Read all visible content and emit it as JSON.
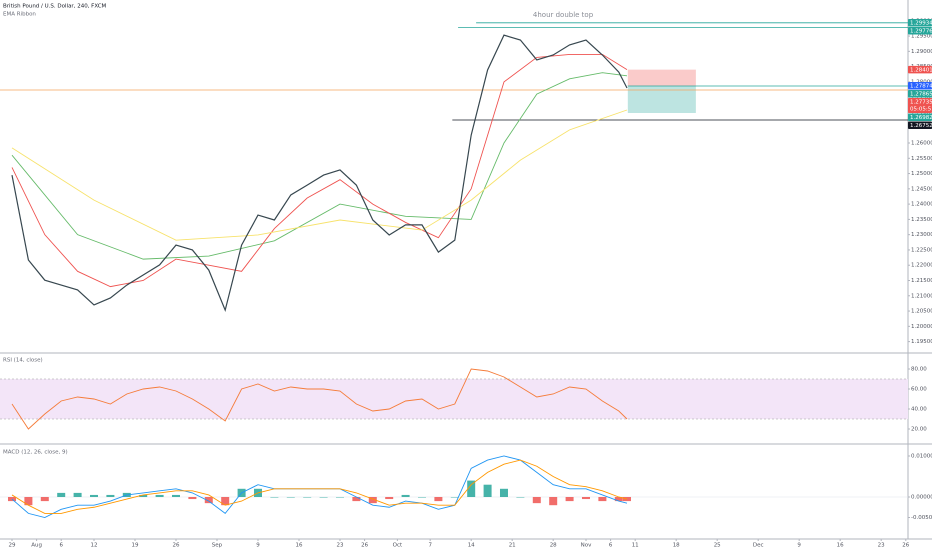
{
  "chart_data": [
    {
      "type": "line",
      "title": "British Pound / U.S. Dollar, 240, FXCM",
      "subtitle": "EMA Ribbon",
      "annotation": {
        "text": "4hour double top",
        "x": 67.2,
        "y": 1.3019
      },
      "xlim": [
        -1.463,
        109.27
      ],
      "ylim": [
        1.1916,
        1.3068
      ],
      "xticks": [
        {
          "value": 0,
          "label": "29"
        },
        {
          "value": 3,
          "label": "Aug"
        },
        {
          "value": 6,
          "label": "6"
        },
        {
          "value": 10,
          "label": "12"
        },
        {
          "value": 15,
          "label": "19"
        },
        {
          "value": 20,
          "label": "26"
        },
        {
          "value": 25,
          "label": "Sep"
        },
        {
          "value": 30,
          "label": "9"
        },
        {
          "value": 35,
          "label": "16"
        },
        {
          "value": 40,
          "label": "23"
        },
        {
          "value": 43,
          "label": "26"
        },
        {
          "value": 47,
          "label": "Oct"
        },
        {
          "value": 51,
          "label": "7"
        },
        {
          "value": 56,
          "label": "14"
        },
        {
          "value": 61,
          "label": "21"
        },
        {
          "value": 66,
          "label": "28"
        },
        {
          "value": 70,
          "label": "Nov"
        },
        {
          "value": 73,
          "label": "6"
        },
        {
          "value": 76,
          "label": "11"
        },
        {
          "value": 81,
          "label": "18"
        },
        {
          "value": 86,
          "label": "25"
        },
        {
          "value": 91,
          "label": "Dec"
        },
        {
          "value": 96,
          "label": "9"
        },
        {
          "value": 101,
          "label": "16"
        },
        {
          "value": 106,
          "label": "23"
        },
        {
          "value": 109,
          "label": "26"
        }
      ],
      "yticks": [
        {
          "value": 1.195,
          "label": "1.19500"
        },
        {
          "value": 1.2,
          "label": "1.20000"
        },
        {
          "value": 1.205,
          "label": "1.20500"
        },
        {
          "value": 1.21,
          "label": "1.21000"
        },
        {
          "value": 1.215,
          "label": "1.21500"
        },
        {
          "value": 1.22,
          "label": "1.22000"
        },
        {
          "value": 1.225,
          "label": "1.22500"
        },
        {
          "value": 1.23,
          "label": "1.23000"
        },
        {
          "value": 1.235,
          "label": "1.23500"
        },
        {
          "value": 1.24,
          "label": "1.24000"
        },
        {
          "value": 1.245,
          "label": "1.24500"
        },
        {
          "value": 1.25,
          "label": "1.25000"
        },
        {
          "value": 1.255,
          "label": "1.25500"
        },
        {
          "value": 1.26,
          "label": "1.26000"
        },
        {
          "value": 1.265,
          "label": "1.26500"
        },
        {
          "value": 1.27,
          "label": "1.27000"
        },
        {
          "value": 1.275,
          "label": "1.27500"
        },
        {
          "value": 1.28,
          "label": "1.28000"
        },
        {
          "value": 1.285,
          "label": "1.28500"
        },
        {
          "value": 1.29,
          "label": "1.29000"
        },
        {
          "value": 1.295,
          "label": "1.29500"
        },
        {
          "value": 1.3,
          "label": "1.30000"
        }
      ],
      "series": [
        {
          "color": "#66bb6a",
          "x": [
            0,
            8,
            16,
            24,
            32,
            40,
            48,
            56,
            60,
            64,
            68,
            72,
            75
          ],
          "values": [
            1.256,
            1.23,
            1.222,
            1.223,
            1.228,
            1.24,
            1.236,
            1.235,
            1.26,
            1.276,
            1.281,
            1.283,
            1.282
          ]
        },
        {
          "color": "#ef5350",
          "x": [
            0,
            4,
            8,
            12,
            16,
            20,
            24,
            28,
            32,
            36,
            40,
            44,
            48,
            52,
            56,
            60,
            64,
            68,
            72,
            75
          ],
          "values": [
            1.252,
            1.23,
            1.218,
            1.213,
            1.215,
            1.222,
            1.22,
            1.218,
            1.232,
            1.242,
            1.248,
            1.24,
            1.234,
            1.229,
            1.245,
            1.28,
            1.288,
            1.289,
            1.289,
            1.284
          ]
        },
        {
          "color": "#f7e26b",
          "x": [
            0,
            10,
            20,
            30,
            40,
            50,
            56,
            62,
            68,
            75
          ],
          "values": [
            1.2584,
            1.2413,
            1.2282,
            1.2299,
            1.2348,
            1.2315,
            1.2413,
            1.2544,
            1.2643,
            1.2708
          ]
        },
        {
          "color": "#37474f",
          "x": [
            0,
            2,
            4,
            6,
            8,
            10,
            12,
            14,
            16,
            18,
            20,
            22,
            24,
            26,
            28,
            30,
            32,
            34,
            36,
            38,
            40,
            42,
            44,
            46,
            48,
            50,
            52,
            54,
            56,
            58,
            60,
            62,
            64,
            66,
            68,
            70,
            72,
            74,
            75
          ],
          "values": [
            1.2495,
            1.2217,
            1.2151,
            1.2135,
            1.2119,
            1.207,
            1.2093,
            1.2135,
            1.2168,
            1.2201,
            1.2266,
            1.225,
            1.2184,
            1.2053,
            1.2266,
            1.2364,
            1.2348,
            1.243,
            1.2462,
            1.2495,
            1.2512,
            1.2462,
            1.2348,
            1.2299,
            1.2332,
            1.2332,
            1.2243,
            1.2282,
            1.2626,
            1.2839,
            1.2953,
            1.2937,
            1.2872,
            1.2888,
            1.2921,
            1.2937,
            1.2888,
            1.2832,
            1.278
          ]
        }
      ],
      "levels": [
        {
          "value": 1.29934,
          "label": "1.29934",
          "color": "#26a69a",
          "from": 56.6
        },
        {
          "value": 1.29776,
          "label": "1.29776",
          "color": "#26a69a",
          "from": 54.4
        },
        {
          "value": 1.27865,
          "label": "1.27865",
          "color": "#26a69a",
          "from": 75.1
        },
        {
          "value": 1.27874,
          "label": "1.27874",
          "color": "#2962ff",
          "from": null
        },
        {
          "value": 1.26752,
          "label": "1.26752",
          "color": "#131722",
          "from": 53.7
        }
      ],
      "position": {
        "x": [
          75.1,
          83.4
        ],
        "entry": 1.27865,
        "stop": 1.28401,
        "stop_label": "1.28401",
        "target": 1.26982,
        "target_label": "1.26982",
        "stop_color": "#ef5350",
        "target_color": "#26a69a"
      },
      "last_price": {
        "value": 1.27735,
        "label": "1.27735",
        "countdown": "05:05:51",
        "color": "#ef5350",
        "line_color": "#f5a45d"
      }
    },
    {
      "type": "line",
      "title": "RSI (14, close)",
      "ylim": [
        6,
        94
      ],
      "band": [
        30,
        70
      ],
      "band_color": "#f3e5f8",
      "yticks": [
        {
          "value": 20,
          "label": "20.00"
        },
        {
          "value": 40,
          "label": "40.00"
        },
        {
          "value": 60,
          "label": "60.00"
        },
        {
          "value": 80,
          "label": "80.00"
        }
      ],
      "x": [
        0,
        2,
        4,
        6,
        8,
        10,
        12,
        14,
        16,
        18,
        20,
        22,
        24,
        26,
        28,
        30,
        32,
        34,
        36,
        38,
        40,
        42,
        44,
        46,
        48,
        50,
        52,
        54,
        56,
        58,
        60,
        62,
        64,
        66,
        68,
        70,
        72,
        74,
        75
      ],
      "series": [
        {
          "color": "#f57c3a",
          "values": [
            45,
            20,
            35,
            48,
            52,
            50,
            45,
            55,
            60,
            62,
            58,
            50,
            40,
            28,
            60,
            65,
            58,
            62,
            60,
            60,
            58,
            45,
            38,
            40,
            48,
            50,
            40,
            45,
            80,
            78,
            72,
            62,
            52,
            55,
            62,
            60,
            48,
            38,
            30
          ]
        }
      ]
    },
    {
      "type": "bar",
      "title": "MACD (12, 26, close, 9)",
      "ylim": [
        -0.01,
        0.01268
      ],
      "yticks": [
        {
          "value": -0.005,
          "label": "-0.00500"
        },
        {
          "value": 0,
          "label": "0.00000"
        },
        {
          "value": 0.01,
          "label": "0.01000"
        }
      ],
      "x": [
        0,
        2,
        4,
        6,
        8,
        10,
        12,
        14,
        16,
        18,
        20,
        22,
        24,
        26,
        28,
        30,
        32,
        34,
        36,
        38,
        40,
        42,
        44,
        46,
        48,
        50,
        52,
        54,
        56,
        58,
        60,
        62,
        64,
        66,
        68,
        70,
        72,
        74,
        75
      ],
      "positive_color": "#26a69a",
      "negative_color": "#ef5350",
      "values": [
        -0.001,
        -0.002,
        -0.001,
        0.001,
        0.001,
        0.0005,
        0.0005,
        0.001,
        0.0005,
        0.0005,
        0.0005,
        -0.0005,
        -0.0015,
        -0.002,
        0.002,
        0.002,
        0,
        0,
        0,
        0,
        0,
        -0.001,
        -0.0015,
        -0.0005,
        0.0005,
        0,
        -0.001,
        0,
        0.004,
        0.003,
        0.002,
        0,
        -0.0015,
        -0.002,
        -0.001,
        -0.0005,
        -0.001,
        -0.001,
        -0.001
      ],
      "series": [
        {
          "color": "#2196f3",
          "values": [
            -0.0005,
            -0.004,
            -0.005,
            -0.003,
            -0.002,
            -0.002,
            -0.001,
            0.0005,
            0.001,
            0.0015,
            0.002,
            0.001,
            -0.001,
            -0.004,
            0.001,
            0.003,
            0.002,
            0.002,
            0.002,
            0.002,
            0.002,
            0,
            -0.002,
            -0.0025,
            -0.001,
            -0.0015,
            -0.003,
            -0.002,
            0.007,
            0.009,
            0.01,
            0.009,
            0.006,
            0.003,
            0.002,
            0.002,
            0.0005,
            -0.001,
            -0.0015
          ]
        },
        {
          "color": "#ff9800",
          "values": [
            0.0005,
            -0.002,
            -0.004,
            -0.004,
            -0.003,
            -0.0025,
            -0.0015,
            -0.0005,
            0.0005,
            0.001,
            0.0015,
            0.0015,
            0.0005,
            -0.002,
            -0.001,
            0.001,
            0.002,
            0.002,
            0.002,
            0.002,
            0.002,
            0.001,
            -0.0005,
            -0.002,
            -0.0015,
            -0.0015,
            -0.002,
            -0.002,
            0.003,
            0.006,
            0.008,
            0.009,
            0.0075,
            0.005,
            0.003,
            0.0025,
            0.0015,
            0,
            -0.0005
          ]
        }
      ]
    }
  ]
}
